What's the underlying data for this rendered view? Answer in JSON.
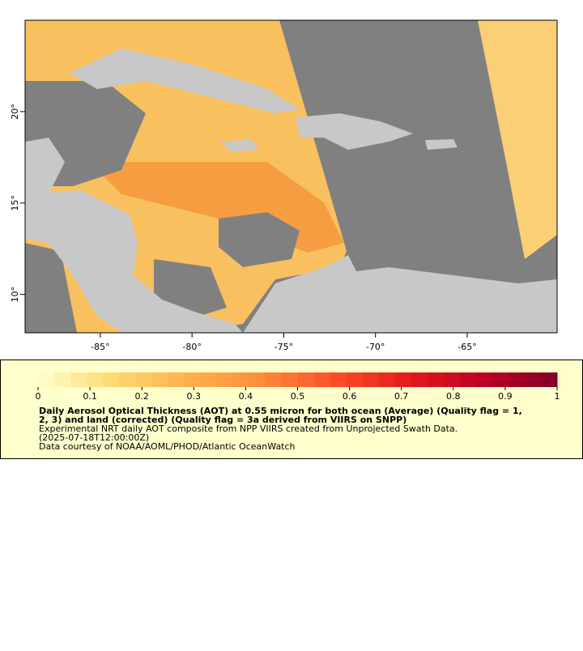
{
  "map": {
    "xlim": [
      -89.1,
      -60.1
    ],
    "ylim": [
      7.9,
      25
    ],
    "xticks": [
      {
        "value": -85,
        "label": "-85°"
      },
      {
        "value": -80,
        "label": "-80°"
      },
      {
        "value": -75,
        "label": "-75°"
      },
      {
        "value": -70,
        "label": "-70°"
      },
      {
        "value": -65,
        "label": "-65°"
      }
    ],
    "yticks": [
      {
        "value": 10,
        "label": "10°"
      },
      {
        "value": 15,
        "label": "15°"
      },
      {
        "value": 20,
        "label": "20°"
      }
    ],
    "colorbar": {
      "lim": [
        0,
        1
      ],
      "ticks": [
        0,
        0.1,
        0.2,
        0.3,
        0.4,
        0.5,
        0.6,
        0.7,
        0.8,
        0.9,
        1
      ],
      "colormap": [
        "#ffffcc",
        "#fed976",
        "#feb24c",
        "#fd8d3c",
        "#fc4e2a",
        "#e31a1c",
        "#bd0026",
        "#800026"
      ],
      "steps": 32
    },
    "title_lines": [
      "Daily Aerosol Optical Thickness (AOT) at 0.55 micron for both ocean (Average) (Quality flag = 1,",
      "2, 3) and land (corrected) (Quality flag = 3a derived from VIIRS on SNPP)"
    ],
    "info_lines": [
      "Experimental NRT daily AOT composite from NPP VIIRS created from Unprojected Swath Data.",
      "(2025-07-18T12:00:00Z)",
      "Data courtesy of NOAA/AOML/PHOD/Atlantic OceanWatch"
    ]
  }
}
